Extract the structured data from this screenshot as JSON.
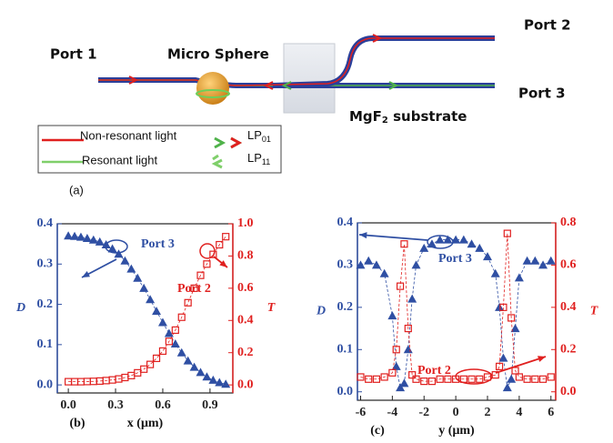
{
  "diagram": {
    "port1": "Port 1",
    "sphere": "Micro Sphere",
    "port2": "Port 2",
    "port3": "Port 3",
    "substrate": {
      "main": "MgF",
      "sub": "2",
      "rest": " substrate"
    },
    "legend": {
      "nonresonant": "Non-resonant light",
      "resonant": "Resonant light",
      "lp01": {
        "main": "LP",
        "sub": "01"
      },
      "lp11": {
        "main": "LP",
        "sub": "11"
      }
    },
    "label": "(a)"
  },
  "chart_data": [
    {
      "type": "scatter",
      "label": "(b)",
      "xlabel": "x (μm)",
      "ylabel": "D",
      "y2label": "T",
      "xlim": [
        -0.07,
        1.045
      ],
      "xticks": [
        {
          "value": 0,
          "label": "0.0"
        },
        0.3,
        0.6,
        0.9
      ],
      "ylim": [
        -0.02,
        0.4
      ],
      "yticks": [
        {
          "value": 0,
          "label": "0.0"
        },
        0.1,
        0.2,
        0.3,
        0.4
      ],
      "y2lim": [
        -0.05,
        1.0
      ],
      "y2ticks": [
        {
          "value": 0,
          "label": "0.0"
        },
        0.2,
        0.4,
        0.6,
        0.8,
        {
          "value": 1,
          "label": "1.0"
        }
      ],
      "x": [
        0,
        0.04,
        0.08,
        0.12,
        0.16,
        0.2,
        0.24,
        0.28,
        0.32,
        0.36,
        0.4,
        0.44,
        0.48,
        0.52,
        0.56,
        0.6,
        0.64,
        0.68,
        0.72,
        0.76,
        0.8,
        0.84,
        0.88,
        0.92,
        0.96,
        1.0
      ],
      "series": [
        {
          "color": "#2f4fa3",
          "marker": "triangle",
          "values": [
            0.37,
            0.369,
            0.367,
            0.364,
            0.36,
            0.355,
            0.348,
            0.338,
            0.325,
            0.308,
            0.288,
            0.265,
            0.24,
            0.212,
            0.183,
            0.155,
            0.128,
            0.102,
            0.08,
            0.06,
            0.044,
            0.031,
            0.02,
            0.012,
            0.006,
            0.002
          ]
        },
        {
          "color": "#e0201f",
          "marker": "square",
          "axis": "y2",
          "values": [
            0.02,
            0.02,
            0.02,
            0.021,
            0.022,
            0.024,
            0.027,
            0.031,
            0.037,
            0.046,
            0.058,
            0.075,
            0.098,
            0.127,
            0.165,
            0.21,
            0.27,
            0.34,
            0.42,
            0.51,
            0.6,
            0.68,
            0.75,
            0.81,
            0.87,
            0.92
          ]
        }
      ],
      "annotations": [
        "Port 3",
        "Port 2"
      ]
    },
    {
      "type": "scatter",
      "label": "(c)",
      "xlabel": "y (μm)",
      "ylabel": "D",
      "y2label": "T",
      "xlim": [
        -6.2,
        6.3
      ],
      "xticks": [
        -6,
        -4,
        -2,
        0,
        2,
        4,
        6
      ],
      "ylim": [
        -0.02,
        0.4
      ],
      "yticks": [
        {
          "value": 0,
          "label": "0.0"
        },
        0.1,
        0.2,
        0.3,
        0.4
      ],
      "y2lim": [
        -0.04,
        0.8
      ],
      "y2ticks": [
        {
          "value": 0,
          "label": "0.0"
        },
        0.2,
        0.4,
        0.6,
        0.8
      ],
      "x": [
        -6,
        -5.5,
        -5,
        -4.5,
        -4,
        -3.75,
        -3.5,
        -3.25,
        -3,
        -2.75,
        -2.5,
        -2,
        -1.5,
        -1,
        -0.5,
        0,
        0.5,
        1,
        1.5,
        2,
        2.5,
        2.75,
        3,
        3.25,
        3.5,
        3.75,
        4,
        4.5,
        5,
        5.5,
        6
      ],
      "series": [
        {
          "color": "#2f4fa3",
          "marker": "triangle",
          "values": [
            0.3,
            0.31,
            0.3,
            0.28,
            0.18,
            0.06,
            0.01,
            0.02,
            0.1,
            0.22,
            0.3,
            0.34,
            0.35,
            0.36,
            0.36,
            0.36,
            0.36,
            0.35,
            0.34,
            0.32,
            0.28,
            0.2,
            0.08,
            0.01,
            0.03,
            0.15,
            0.27,
            0.31,
            0.31,
            0.3,
            0.31
          ]
        },
        {
          "color": "#e0201f",
          "marker": "square",
          "axis": "y2",
          "values": [
            0.07,
            0.06,
            0.06,
            0.07,
            0.09,
            0.2,
            0.5,
            0.7,
            0.3,
            0.08,
            0.06,
            0.05,
            0.05,
            0.06,
            0.06,
            0.06,
            0.06,
            0.06,
            0.06,
            0.07,
            0.08,
            0.12,
            0.4,
            0.75,
            0.35,
            0.1,
            0.07,
            0.06,
            0.06,
            0.06,
            0.07
          ]
        }
      ],
      "annotations": [
        "Port 3",
        "Port 2"
      ]
    }
  ]
}
